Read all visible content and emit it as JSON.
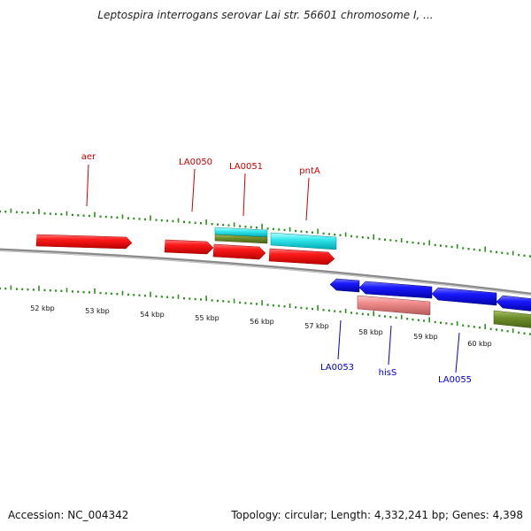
{
  "title": "Leptospira interrogans serovar Lai str. 56601 chromosome I, ...",
  "footer": {
    "accession": "Accession: NC_004342",
    "topology": "Topology: circular; Length: 4,332,241 bp; Genes: 4,398"
  },
  "colors": {
    "backbone": "#8a8a8a",
    "ticks": "#2e8b1f",
    "forward_label": "#cc0000",
    "reverse_label": "#0000cc"
  },
  "ruler_labels": [
    "52 kbp",
    "53 kbp",
    "54 kbp",
    "55 kbp",
    "56 kbp",
    "57 kbp",
    "58 kbp",
    "59 kbp",
    "60 kbp"
  ],
  "forward_labels": [
    "aer",
    "LA0050",
    "LA0051",
    "pntA"
  ],
  "reverse_labels": [
    "LA0053",
    "hisS",
    "LA0055"
  ]
}
